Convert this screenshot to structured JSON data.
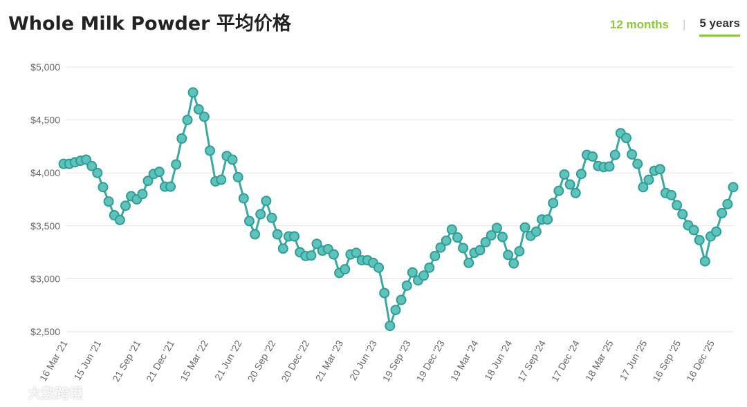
{
  "header": {
    "title": "Whole Milk Powder 平均价格",
    "tab_12m": "12 months",
    "tab_separator": "|",
    "tab_5y": "5 years"
  },
  "watermark": {
    "text": "大數跨境"
  },
  "colors": {
    "line": "#3aa9a4",
    "marker_fill": "#5ec3bb",
    "marker_stroke": "#2f9d96",
    "grid": "#e5e5e5",
    "axis_text": "#666666",
    "accent": "#8dc63f"
  },
  "chart_data": {
    "type": "line",
    "ylim": [
      2500,
      5000
    ],
    "yticks": [
      2500,
      3000,
      3500,
      4000,
      4500,
      5000
    ],
    "ytick_labels": [
      "$2,500",
      "$3,000",
      "$3,500",
      "$4,000",
      "$4,500",
      "$5,000"
    ],
    "xtick_labels": [
      "16 Mar '21",
      "15 Jun '21",
      "21 Sep '21",
      "21 Dec '21",
      "15 Mar '22",
      "21 Jun '22",
      "20 Sep '22",
      "20 Dec '22",
      "21 Mar '23",
      "20 Jun '23",
      "19 Sep '23",
      "19 Dec '23",
      "19 Mar '24",
      "18 Jun '24",
      "17 Sep '24",
      "17 Dec '24",
      "18 Mar '25",
      "17 Jun '25",
      "16 Sep '25",
      "16 Dec '25"
    ],
    "xtick_positions": [
      0,
      6,
      13,
      19,
      25,
      31,
      37,
      43,
      49,
      55,
      61,
      67,
      73,
      79,
      85,
      91,
      97,
      103,
      109,
      115
    ],
    "grid": true,
    "series": [
      {
        "values": [
          4085,
          4085,
          4100,
          4115,
          4125,
          4065,
          4000,
          3865,
          3730,
          3600,
          3555,
          3690,
          3780,
          3750,
          3800,
          3925,
          3990,
          4010,
          3870,
          3870,
          4080,
          4325,
          4500,
          4760,
          4600,
          4530,
          4210,
          3920,
          3935,
          4160,
          4125,
          3960,
          3760,
          3545,
          3420,
          3610,
          3735,
          3575,
          3420,
          3285,
          3400,
          3400,
          3250,
          3215,
          3220,
          3330,
          3265,
          3280,
          3230,
          3055,
          3090,
          3230,
          3245,
          3175,
          3175,
          3150,
          3105,
          2865,
          2555,
          2705,
          2800,
          2935,
          3060,
          2985,
          3030,
          3105,
          3215,
          3295,
          3360,
          3465,
          3390,
          3290,
          3150,
          3245,
          3270,
          3345,
          3410,
          3480,
          3395,
          3225,
          3145,
          3260,
          3485,
          3405,
          3445,
          3560,
          3560,
          3715,
          3830,
          3985,
          3890,
          3810,
          3990,
          4170,
          4155,
          4065,
          4055,
          4060,
          4170,
          4375,
          4330,
          4175,
          4085,
          3865,
          3935,
          4020,
          4035,
          3810,
          3790,
          3695,
          3610,
          3505,
          3460,
          3365,
          3165,
          3400,
          3445,
          3620,
          3705,
          3865
        ]
      }
    ]
  }
}
